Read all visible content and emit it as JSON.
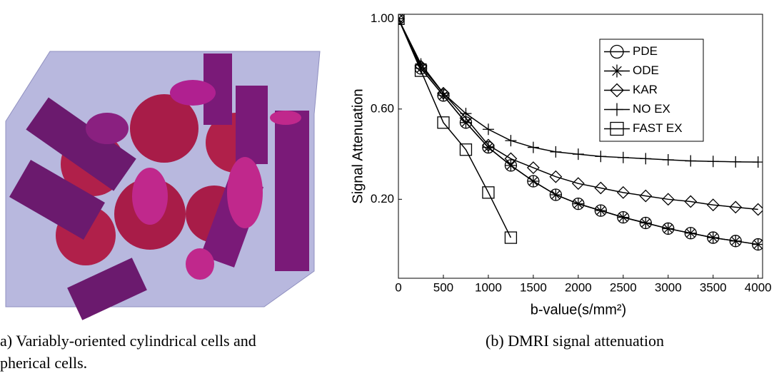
{
  "figure_a_caption": [
    "a) Variably-oriented cylindrical cells and",
    "pherical cells."
  ],
  "chart_data": {
    "type": "line",
    "caption": "(b) DMRI signal attenuation",
    "xlabel": "b-value(s/mm²)",
    "ylabel": "Signal Attenuation",
    "x": [
      0,
      250,
      500,
      750,
      1000,
      1250,
      1500,
      1750,
      2000,
      2250,
      2500,
      2750,
      3000,
      3250,
      3500,
      3750,
      4000
    ],
    "series": [
      {
        "name": "PDE",
        "color": "#000000",
        "marker": "circle",
        "values": [
          1.0,
          0.78,
          0.66,
          0.54,
          0.43,
          0.35,
          0.28,
          0.22,
          0.18,
          0.15,
          0.12,
          0.095,
          0.07,
          0.05,
          0.03,
          0.015,
          0.0
        ]
      },
      {
        "name": "ODE",
        "color": "#000000",
        "marker": "asterisk",
        "values": [
          1.0,
          0.78,
          0.66,
          0.54,
          0.43,
          0.35,
          0.28,
          0.22,
          0.18,
          0.15,
          0.12,
          0.095,
          0.07,
          0.05,
          0.03,
          0.015,
          0.0
        ]
      },
      {
        "name": "KAR",
        "color": "#000000",
        "marker": "diamond",
        "values": [
          1.0,
          0.79,
          0.67,
          0.56,
          0.44,
          0.38,
          0.34,
          0.3,
          0.27,
          0.25,
          0.23,
          0.215,
          0.2,
          0.19,
          0.175,
          0.165,
          0.155
        ]
      },
      {
        "name": "NO EX",
        "color": "#000000",
        "marker": "plus",
        "values": [
          1.0,
          0.8,
          0.67,
          0.58,
          0.51,
          0.46,
          0.43,
          0.41,
          0.4,
          0.39,
          0.385,
          0.38,
          0.375,
          0.37,
          0.368,
          0.366,
          0.365
        ]
      },
      {
        "name": "FAST EX",
        "color": "#000000",
        "marker": "square",
        "values": [
          1.0,
          0.77,
          0.54,
          0.42,
          0.23,
          0.03,
          null,
          null,
          null,
          null,
          null,
          null,
          null,
          null,
          null,
          null,
          null
        ]
      }
    ],
    "xlim": [
      0,
      4050
    ],
    "ylim": [
      -0.15,
      1.02
    ],
    "xticks": [
      0,
      500,
      1000,
      1500,
      2000,
      2500,
      3000,
      3500,
      4000
    ],
    "yticks": [
      {
        "value": 0.2,
        "label": "0.20"
      },
      {
        "value": 0.6,
        "label": "0.60"
      },
      {
        "value": 1.0,
        "label": "1.00"
      }
    ],
    "legend": "upper right"
  }
}
